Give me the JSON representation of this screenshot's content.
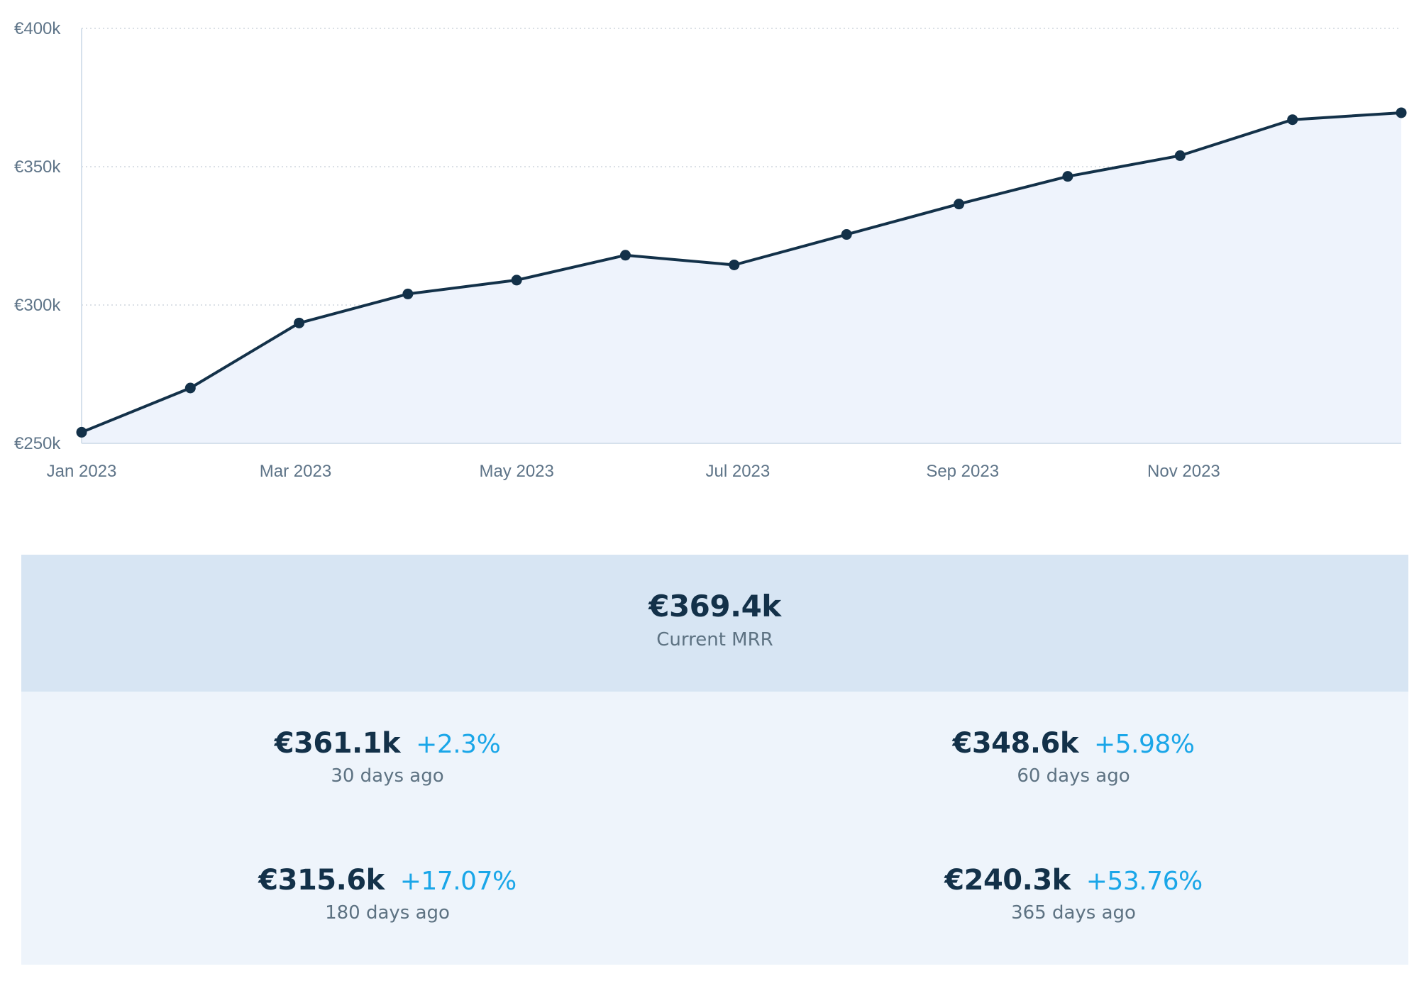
{
  "chart_data": {
    "type": "area",
    "title": "",
    "xlabel": "",
    "ylabel": "",
    "x": [
      "2023-01-01",
      "2023-01-31",
      "2023-03-02",
      "2023-04-01",
      "2023-05-01",
      "2023-05-31",
      "2023-06-30",
      "2023-07-31",
      "2023-08-31",
      "2023-09-30",
      "2023-10-31",
      "2023-12-01",
      "2023-12-31"
    ],
    "values": [
      254000,
      270000,
      293500,
      304000,
      309000,
      318000,
      314500,
      325500,
      336500,
      346500,
      354000,
      367000,
      369500
    ],
    "ylim": [
      250000,
      400000
    ],
    "y_ticks": [
      "€250k",
      "€300k",
      "€350k",
      "€400k"
    ],
    "y_tick_values": [
      250000,
      300000,
      350000,
      400000
    ],
    "x_ticks": [
      "Jan 2023",
      "Mar 2023",
      "May 2023",
      "Jul 2023",
      "Sep 2023",
      "Nov 2023"
    ],
    "x_tick_dates": [
      "2023-01-01",
      "2023-03-01",
      "2023-05-01",
      "2023-07-01",
      "2023-09-01",
      "2023-11-01"
    ],
    "x_range": [
      "2023-01-01",
      "2023-12-31"
    ],
    "grid": true,
    "colors": {
      "line": "#133149",
      "fill": "#eef3fc",
      "grid": "#cfd6de"
    }
  },
  "summary": {
    "current": {
      "value": "€369.4k",
      "label": "Current MRR"
    },
    "stats": [
      {
        "value": "€361.1k",
        "change": "+2.3%",
        "label": "30 days ago"
      },
      {
        "value": "€348.6k",
        "change": "+5.98%",
        "label": "60 days ago"
      },
      {
        "value": "€315.6k",
        "change": "+17.07%",
        "label": "180 days ago"
      },
      {
        "value": "€240.3k",
        "change": "+53.76%",
        "label": "365 days ago"
      }
    ],
    "colors": {
      "value": "#133149",
      "change": "#1aa6e8",
      "label": "#5d7282",
      "top_bg": "#d7e5f3",
      "bottom_bg": "#eef4fb"
    }
  }
}
